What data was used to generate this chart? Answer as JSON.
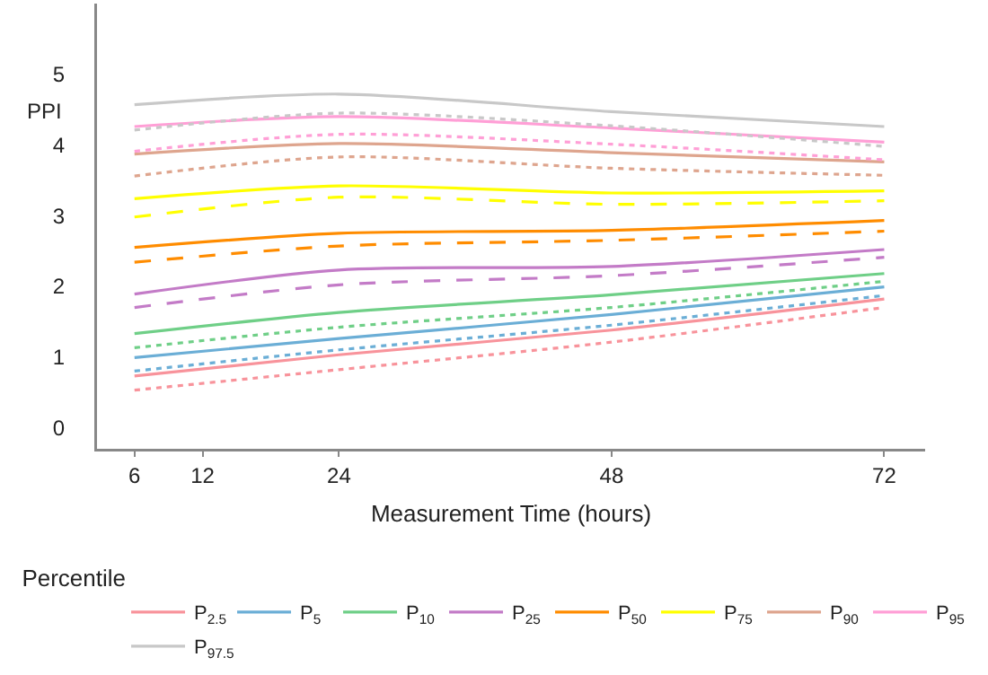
{
  "chart_data": {
    "type": "line",
    "xlabel": "Measurement Time (hours)",
    "ylabel": "PPI",
    "legend_title": "Percentile",
    "x": [
      6,
      24,
      48,
      72
    ],
    "xlim": [
      2.7,
      75.6
    ],
    "ylim": [
      -0.3,
      6
    ],
    "xticks": [
      6,
      12,
      24,
      48,
      72
    ],
    "yticks": [
      0,
      1,
      2,
      3,
      4,
      5
    ],
    "grid": false,
    "legend": "bottom",
    "marker": "none",
    "series": [
      {
        "name": "P$_{2.5}$",
        "color": "#f8939b",
        "line_style": "solid",
        "values": [
          0.73,
          1.03,
          1.38,
          1.82
        ]
      },
      {
        "color": "#f8939b",
        "line_style": "dotted",
        "values": [
          0.53,
          0.82,
          1.21,
          1.7
        ]
      },
      {
        "name": "P$_{5}$",
        "color": "#6baed6",
        "line_style": "solid",
        "values": [
          0.99,
          1.26,
          1.6,
          1.99
        ]
      },
      {
        "color": "#6baed6",
        "line_style": "dotted",
        "values": [
          0.8,
          1.1,
          1.45,
          1.87
        ]
      },
      {
        "name": "P$_{10}$",
        "color": "#6fcf87",
        "line_style": "solid",
        "values": [
          1.33,
          1.63,
          1.88,
          2.18
        ]
      },
      {
        "color": "#6fcf87",
        "line_style": "dotted",
        "values": [
          1.13,
          1.42,
          1.7,
          2.07
        ]
      },
      {
        "name": "P$_{25}$",
        "color": "#c37bc7",
        "line_style": "solid",
        "values": [
          1.89,
          2.23,
          2.28,
          2.52
        ]
      },
      {
        "color": "#c37bc7",
        "line_style": "dashed",
        "values": [
          1.7,
          2.02,
          2.15,
          2.41
        ]
      },
      {
        "name": "P$_{50}$",
        "color": "#ff8c00",
        "line_style": "solid",
        "values": [
          2.55,
          2.75,
          2.79,
          2.93
        ]
      },
      {
        "color": "#ff8c00",
        "line_style": "dashed",
        "values": [
          2.34,
          2.57,
          2.65,
          2.78
        ]
      },
      {
        "name": "P$_{75}$",
        "color": "#ffff00",
        "line_style": "solid",
        "values": [
          3.24,
          3.42,
          3.32,
          3.35
        ]
      },
      {
        "color": "#ffff00",
        "line_style": "dashed",
        "values": [
          2.98,
          3.26,
          3.16,
          3.21
        ]
      },
      {
        "name": "P$_{90}$",
        "color": "#dea58e",
        "line_style": "solid",
        "values": [
          3.87,
          4.02,
          3.89,
          3.76
        ]
      },
      {
        "color": "#dea58e",
        "line_style": "dotted",
        "values": [
          3.56,
          3.83,
          3.67,
          3.57
        ]
      },
      {
        "name": "P$_{95}$",
        "color": "#ff9fd6",
        "line_style": "solid",
        "values": [
          4.26,
          4.4,
          4.24,
          4.04
        ]
      },
      {
        "color": "#ff9fd6",
        "line_style": "dotted",
        "values": [
          3.91,
          4.15,
          4.01,
          3.79
        ]
      },
      {
        "name": "P$_{97.5}$",
        "color": "#c8c8c8",
        "line_style": "solid",
        "values": [
          4.57,
          4.72,
          4.47,
          4.26
        ]
      },
      {
        "color": "#c8c8c8",
        "line_style": "dotted",
        "values": [
          4.21,
          4.45,
          4.27,
          3.98
        ]
      }
    ]
  }
}
